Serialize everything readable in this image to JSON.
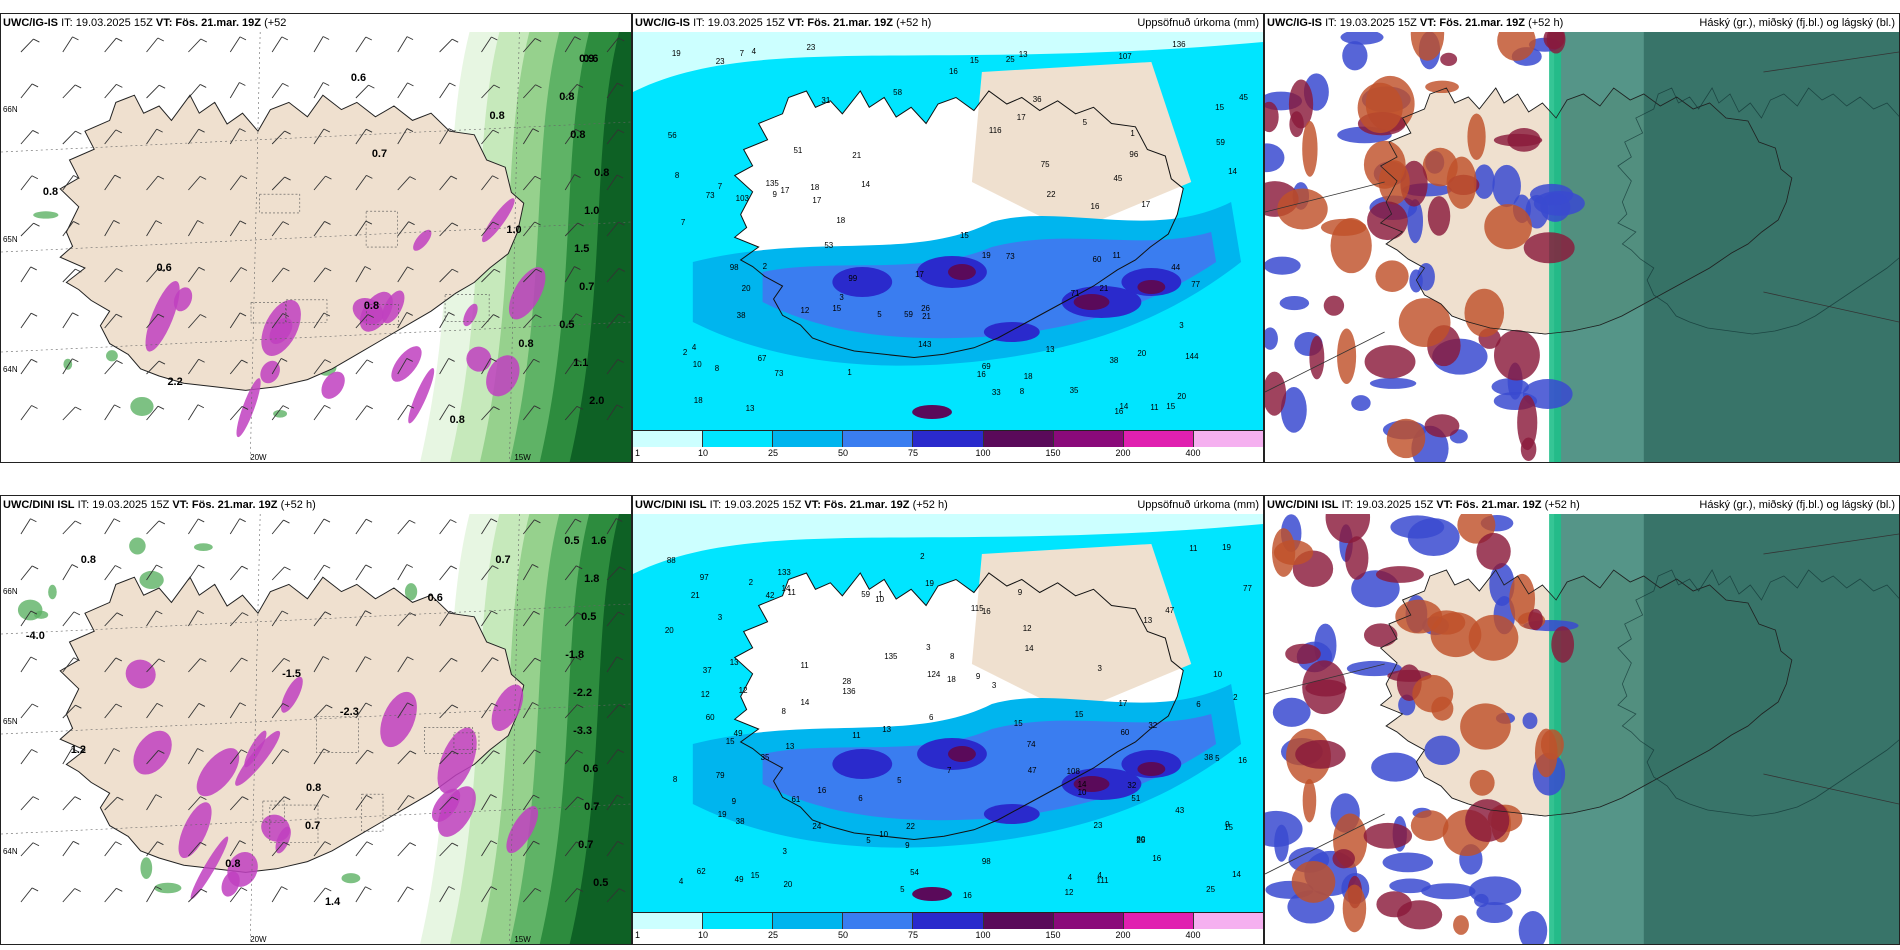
{
  "rows": [
    {
      "model": "UWC/IG-IS",
      "panels": [
        {
          "id": "r0p0",
          "title_model": "UWC/IG-IS",
          "title_it": "IT: 19.03.2025 15Z",
          "title_vt": "VT: Fös. 21.mar. 19Z",
          "title_lead": "(+52",
          "title_cont": "h)",
          "right_title": ""
        },
        {
          "id": "r0p1",
          "title_model": "UWC/IG-IS",
          "title_it": "IT: 19.03.2025 15Z",
          "title_vt": "VT: Fös. 21.mar. 19Z",
          "title_lead": "(+52 h)",
          "right_title": "Uppsöfnuð úrkoma (mm)"
        },
        {
          "id": "r0p2",
          "title_model": "UWC/IG-IS",
          "title_it": "IT: 19.03.2025 15Z",
          "title_vt": "VT: Fös. 21.mar. 19Z",
          "title_lead": "(+52 h)",
          "right_title": "Háský (gr.), miðský (fj.bl.) og lágský (bl.)"
        }
      ]
    },
    {
      "model": "UWC/DINI ISL",
      "panels": [
        {
          "id": "r1p0",
          "title_model": "UWC/DINI ISL",
          "title_it": "IT: 19.03.2025 15Z",
          "title_vt": "VT: Fös. 21.mar. 19Z",
          "title_lead": "(+52 h)",
          "right_title": ""
        },
        {
          "id": "r1p1",
          "title_model": "UWC/DINI ISL",
          "title_it": "IT: 19.03.2025 15Z",
          "title_vt": "VT: Fös. 21.mar. 19Z",
          "title_lead": "(+52 h)",
          "right_title": "Uppsöfnuð úrkoma (mm)"
        },
        {
          "id": "r1p2",
          "title_model": "UWC/DINI ISL",
          "title_it": "IT: 19.03.2025 15Z",
          "title_vt": "VT: Fös. 21.mar. 19Z",
          "title_lead": "(+52 h)",
          "right_title": "Háský (gr.), miðský (fj.bl.) og lágský (bl.)"
        }
      ]
    }
  ],
  "precip_colorbar": {
    "ticks": [
      "1",
      "10",
      "25",
      "50",
      "75",
      "100",
      "150",
      "200",
      "400"
    ],
    "colors": [
      "#ccffff",
      "#00e5ff",
      "#00b5ee",
      "#3a7df0",
      "#2a2acc",
      "#5a0a5a",
      "#8a0a7a",
      "#e020b0",
      "#f5b0f0"
    ]
  },
  "temp_map_labels": {
    "row0": [
      "0.6",
      "0.6",
      "0.8",
      "0.8",
      "0.8",
      "0.7",
      "0.8",
      "0.8",
      "1.0",
      "1.0",
      "1.5",
      "0.6",
      "0.7",
      "0.8",
      "0.5",
      "0.8",
      "1.1",
      "2.2",
      "2.0",
      "0.8",
      "0.9"
    ],
    "row1": [
      "0.5",
      "0.8",
      "1.8",
      "0.6",
      "0.5",
      "-4.0",
      "-1.8",
      "-1.5",
      "-2.2",
      "-2.3",
      "-3.3",
      "1.2",
      "0.6",
      "0.8",
      "0.7",
      "0.7",
      "0.7",
      "0.8",
      "0.5",
      "1.4",
      "1.6",
      "0.7"
    ],
    "lon_labels": [
      "20W",
      "15W"
    ],
    "lat_labels": [
      "66N",
      "65N",
      "64N"
    ]
  },
  "precip_map_labels": {
    "row0": [
      "17",
      "9",
      "7",
      "11",
      "15",
      "31",
      "59",
      "53",
      "15",
      "16",
      "17",
      "15",
      "19",
      "14",
      "18",
      "13",
      "15",
      "14",
      "15",
      "14",
      "11",
      "17",
      "18",
      "12",
      "20",
      "22",
      "16",
      "4",
      "1",
      "2",
      "3",
      "5",
      "8",
      "3",
      "5",
      "8",
      "7",
      "4",
      "2",
      "1",
      "7",
      "20",
      "44",
      "35",
      "21",
      "10",
      "26",
      "51",
      "23",
      "36",
      "33",
      "45",
      "73",
      "107",
      "59",
      "75",
      "73",
      "23",
      "38",
      "67",
      "25",
      "58",
      "56",
      "60",
      "38",
      "73",
      "136",
      "116",
      "71",
      "99",
      "98",
      "135",
      "143",
      "96",
      "144",
      "69",
      "77",
      "103",
      "45",
      "16",
      "17",
      "18",
      "21",
      "17",
      "20",
      "13",
      "16",
      "19",
      "21",
      "18",
      "13",
      "8"
    ],
    "row1": [
      "5",
      "8",
      "6",
      "10",
      "11",
      "15",
      "12",
      "13",
      "18",
      "23",
      "16",
      "15",
      "14",
      "19",
      "10",
      "9",
      "12",
      "9",
      "8",
      "10",
      "8",
      "11",
      "7",
      "9",
      "16",
      "13",
      "12",
      "14",
      "4",
      "3",
      "4",
      "2",
      "3",
      "6",
      "5",
      "2",
      "1",
      "25",
      "42",
      "35",
      "28",
      "43",
      "37",
      "38",
      "16",
      "22",
      "62",
      "98",
      "115",
      "79",
      "133",
      "111",
      "59",
      "47",
      "135",
      "38",
      "32",
      "51",
      "80",
      "124",
      "136",
      "108",
      "97",
      "24",
      "15",
      "88",
      "77",
      "54",
      "74",
      "25",
      "19",
      "20",
      "21",
      "20",
      "49",
      "60",
      "14",
      "14",
      "14",
      "13",
      "16",
      "17",
      "16",
      "15",
      "19",
      "9",
      "10",
      "9",
      "13",
      "11",
      "5",
      "3",
      "3",
      "4",
      "32",
      "47",
      "60",
      "61",
      "49",
      "15",
      "3",
      "2",
      "11",
      "12",
      "6",
      "5"
    ]
  }
}
